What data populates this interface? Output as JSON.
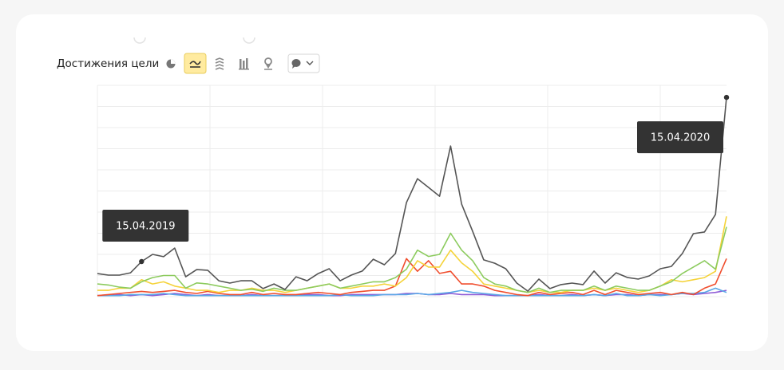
{
  "toolbar": {
    "title": "Достижения цели"
  },
  "chart_data": {
    "type": "line",
    "categories": [
      null,
      null,
      null,
      null,
      "15.04.2019",
      null,
      null,
      null,
      null,
      null,
      null,
      null,
      null,
      null,
      null,
      null,
      null,
      null,
      null,
      null,
      null,
      null,
      null,
      null,
      null,
      null,
      null,
      null,
      null,
      null,
      null,
      null,
      null,
      null,
      null,
      null,
      null,
      null,
      null,
      null,
      null,
      null,
      null,
      null,
      null,
      null,
      null,
      null,
      null,
      null,
      null,
      null,
      null,
      null,
      null,
      null,
      null,
      "15.04.2020"
    ],
    "ylim": [
      0,
      100
    ],
    "grid": true,
    "series": [
      {
        "color": "#555555",
        "values": [
          10.9,
          10.2,
          10.2,
          11.3,
          16.6,
          20,
          18.9,
          23,
          9.4,
          12.8,
          12.5,
          7.5,
          6.4,
          7.5,
          7.5,
          3.8,
          6,
          3.4,
          9.4,
          7.5,
          10.9,
          13.2,
          7.5,
          10.2,
          12.1,
          17.7,
          15.1,
          20.4,
          44.5,
          55.8,
          51.7,
          47.5,
          71.3,
          43.8,
          30.9,
          17.4,
          15.8,
          13.2,
          6.4,
          2.6,
          8.3,
          3.8,
          5.7,
          6.4,
          5.7,
          12.1,
          6.4,
          11.3,
          9.1,
          8.3,
          9.8,
          13.2,
          14.3,
          20.4,
          29.8,
          30.6,
          38.9,
          94.3
        ]
      },
      {
        "color": "#8ccb5e",
        "values": [
          6,
          5.5,
          4.5,
          4,
          7,
          9,
          10,
          10,
          4,
          6.5,
          6,
          5,
          4,
          3,
          3.5,
          2.5,
          4,
          3,
          3,
          4,
          5,
          6,
          4,
          5,
          6,
          7,
          7,
          9,
          13,
          22,
          19,
          20,
          30,
          22,
          17,
          9,
          6,
          5,
          3,
          2,
          4,
          2,
          3,
          3,
          3,
          5,
          3,
          5,
          4,
          3,
          3,
          5,
          7,
          11,
          14,
          17,
          13,
          33
        ]
      },
      {
        "color": "#f5d33a",
        "values": [
          3,
          3,
          4,
          4,
          8,
          6,
          7,
          5,
          4,
          3,
          3,
          2,
          3,
          3,
          4,
          3,
          3,
          2,
          3,
          4,
          5,
          6,
          4,
          4,
          5,
          5,
          6,
          5,
          9,
          17,
          14,
          14,
          22,
          16,
          12,
          6,
          5,
          4,
          3,
          2,
          3,
          2,
          2,
          3,
          3,
          4,
          3,
          4,
          3,
          2,
          3,
          5,
          8,
          7,
          8,
          9,
          12,
          38
        ]
      },
      {
        "color": "#f04e2e",
        "values": [
          0.5,
          1,
          1.5,
          2,
          2.5,
          2,
          2.5,
          3,
          2,
          1.5,
          2.5,
          1.5,
          1,
          1,
          2,
          1,
          1.5,
          1,
          1,
          1.5,
          2,
          1.5,
          1,
          2,
          2.5,
          3,
          3,
          5,
          18,
          12,
          17,
          11,
          12,
          6,
          6,
          5,
          3,
          2,
          1,
          0.5,
          2,
          1,
          1.5,
          2,
          1,
          3,
          1,
          3,
          2,
          1,
          1.5,
          2,
          1,
          2,
          1,
          4,
          6,
          18
        ]
      },
      {
        "color": "#5aa7e6",
        "values": [
          0.5,
          0.5,
          0.5,
          1,
          1,
          1,
          1.5,
          1,
          0.5,
          0.5,
          0.5,
          0.5,
          0.5,
          0.5,
          0.5,
          0.5,
          0.5,
          0.5,
          0.5,
          0.5,
          0.5,
          0.5,
          1,
          0.5,
          0.5,
          0.5,
          1,
          1,
          1,
          1.5,
          1,
          1.5,
          2,
          3,
          2,
          1.5,
          1,
          0.5,
          0.5,
          0.5,
          0.5,
          0.5,
          0.5,
          0.5,
          0.5,
          1,
          0.5,
          1.5,
          0.5,
          0.5,
          1,
          0.5,
          1,
          1.5,
          1.5,
          2,
          4,
          2
        ]
      },
      {
        "color": "#8e5bd6",
        "values": [
          0.5,
          0.5,
          1,
          0.5,
          1,
          0.5,
          1,
          1.5,
          1,
          0.5,
          1,
          0.5,
          0.5,
          0.5,
          1,
          0.5,
          0.5,
          0.5,
          0.5,
          1,
          1,
          0.5,
          0.5,
          1,
          1,
          1,
          1,
          1,
          1.5,
          1.5,
          1,
          1,
          1.5,
          1,
          1,
          1,
          0.5,
          0.5,
          0.5,
          0.5,
          1,
          0.5,
          0.5,
          1,
          0.5,
          1,
          0.5,
          1,
          1,
          0.5,
          1,
          1,
          1,
          1.5,
          1,
          1.5,
          2,
          3
        ]
      }
    ]
  }
}
